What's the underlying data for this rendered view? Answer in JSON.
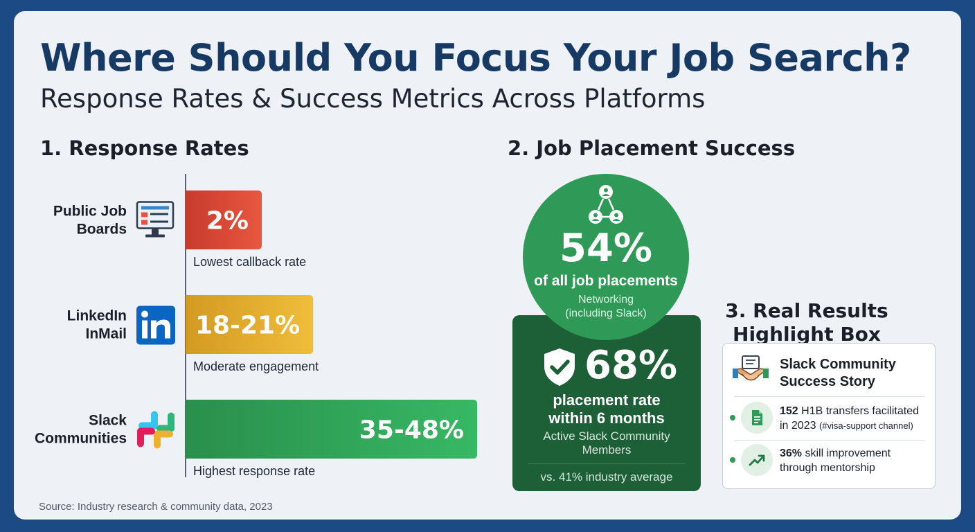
{
  "header": {
    "title": "Where Should You Focus Your Job Search?",
    "subtitle": "Response Rates & Success Metrics Across Platforms"
  },
  "sections": {
    "response_rates": "1. Response Rates",
    "placement": "2. Job Placement Success",
    "results": "3. Real Results Highlight Box"
  },
  "chart_data": {
    "type": "bar",
    "orientation": "horizontal",
    "title": "1. Response Rates",
    "categories": [
      {
        "lines": [
          "Public Job",
          "Boards"
        ],
        "icon": "computer-job-board-icon"
      },
      {
        "lines": [
          "LinkedIn",
          "InMail"
        ],
        "icon": "linkedin-icon"
      },
      {
        "lines": [
          "Slack",
          "Communities"
        ],
        "icon": "slack-icon"
      }
    ],
    "value_labels": [
      "2%",
      "18-21%",
      "35-48%"
    ],
    "values_low": [
      2,
      18,
      35
    ],
    "values_high": [
      2,
      21,
      48
    ],
    "captions": [
      "Lowest callback rate",
      "Moderate engagement",
      "Highest response rate"
    ],
    "colors": [
      "#d74633",
      "#e2a92a",
      "#2f9e56"
    ],
    "color_gradients": [
      [
        "#c83b2c",
        "#e8573f"
      ],
      [
        "#d29a22",
        "#f0bd3a"
      ],
      [
        "#2a8f4c",
        "#37b864"
      ]
    ],
    "xlim": [
      0,
      48
    ],
    "grid": false
  },
  "placement": {
    "networking": {
      "value": "54%",
      "label": "of all job placements",
      "note_line1": "Networking",
      "note_line2": "(including Slack)",
      "icon": "network-people-icon",
      "color": "#2f9a57"
    },
    "slack": {
      "value": "68%",
      "label_line1": "placement rate",
      "label_line2": "within 6 months",
      "note_line1": "Active Slack Community",
      "note_line2": "Members",
      "comparison": "vs. 41% industry average",
      "icon": "shield-check-icon",
      "color": "#1d5f36"
    }
  },
  "highlight": {
    "title_line1": "3. Real Results",
    "title_line2": "Highlight Box",
    "story_line1": "Slack Community",
    "story_line2": "Success Story",
    "story_icon": "handshake-icon",
    "items": [
      {
        "number": "152",
        "text": " H1B transfers facilitated",
        "line2": "in 2023 ",
        "note": "(#visa-support channel)",
        "icon": "document-icon"
      },
      {
        "number": "36%",
        "text": " skill improvement",
        "line2": "through mentorship",
        "note": "",
        "icon": "trend-up-icon"
      }
    ]
  },
  "footer": {
    "source": "Source: Industry research & community data, 2023"
  }
}
